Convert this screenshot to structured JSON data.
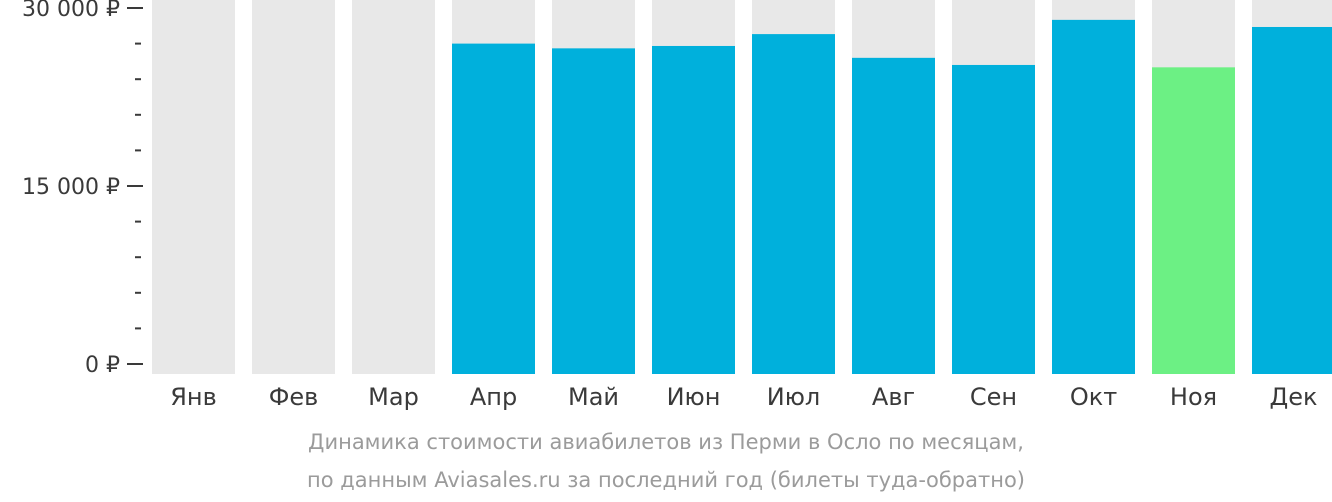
{
  "chart_data": {
    "type": "bar",
    "categories": [
      "Янв",
      "Фев",
      "Мар",
      "Апр",
      "Май",
      "Июн",
      "Июл",
      "Авг",
      "Сен",
      "Окт",
      "Ноя",
      "Дек"
    ],
    "values": [
      null,
      null,
      null,
      27000,
      26600,
      26800,
      27800,
      25800,
      25200,
      29000,
      25000,
      28400
    ],
    "highlight_category": "Ноя",
    "ylim": [
      0,
      30000
    ],
    "y_ticks": [
      {
        "value": 0,
        "label": "0 ₽"
      },
      {
        "value": 15000,
        "label": "15 000 ₽"
      },
      {
        "value": 30000,
        "label": "30 000 ₽"
      }
    ],
    "y_minor_tick_step": 3000,
    "grid": false,
    "colors": {
      "bar": "#00b0dc",
      "highlight": "#6cf084",
      "background_bar": "#e8e8e8",
      "axis_text": "#3a3a3a",
      "tick": "#3a3a3a"
    }
  },
  "caption": {
    "line1": "Динамика стоимости авиабилетов из Перми в Осло по месяцам,",
    "line2": "по данным Aviasales.ru за последний год (билеты туда-обратно)"
  }
}
